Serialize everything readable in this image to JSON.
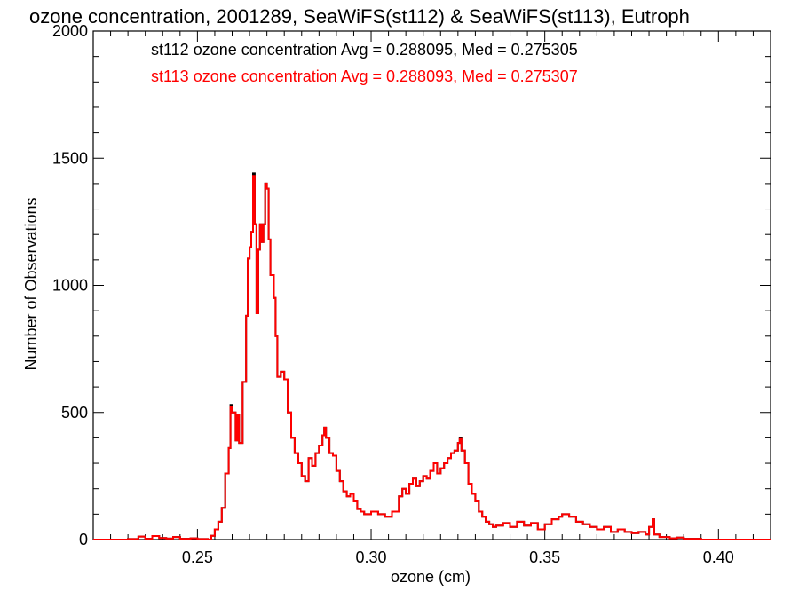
{
  "chart_data": {
    "type": "line",
    "title": "ozone concentration, 2001289, SeaWiFS(st112) & SeaWiFS(st113), Eutroph",
    "xlabel": "ozone (cm)",
    "ylabel": "Number of Observations",
    "xlim": [
      0.22,
      0.415
    ],
    "ylim": [
      0,
      2000
    ],
    "grid": false,
    "legend_position": "top-left",
    "x_ticks": [
      "0.25",
      "0.30",
      "0.35",
      "0.40"
    ],
    "y_ticks": [
      "0",
      "500",
      "1000",
      "1500",
      "2000"
    ],
    "annotations": [
      {
        "text": "st112 ozone concentration Avg = 0.288095, Med = 0.275305",
        "color": "#000000"
      },
      {
        "text": "st113 ozone concentration Avg = 0.288093, Med = 0.275307",
        "color": "#ff0000"
      }
    ],
    "series": [
      {
        "color": "#000000",
        "points": [
          [
            0.22,
            0
          ],
          [
            0.23,
            2
          ],
          [
            0.233,
            12
          ],
          [
            0.235,
            3
          ],
          [
            0.237,
            14
          ],
          [
            0.239,
            6
          ],
          [
            0.241,
            4
          ],
          [
            0.243,
            10
          ],
          [
            0.245,
            3
          ],
          [
            0.248,
            5
          ],
          [
            0.25,
            2
          ],
          [
            0.253,
            0
          ],
          [
            0.254,
            15
          ],
          [
            0.255,
            40
          ],
          [
            0.256,
            70
          ],
          [
            0.257,
            125
          ],
          [
            0.258,
            260
          ],
          [
            0.259,
            360
          ],
          [
            0.2595,
            530
          ],
          [
            0.26,
            500
          ],
          [
            0.261,
            390
          ],
          [
            0.2615,
            490
          ],
          [
            0.262,
            380
          ],
          [
            0.263,
            620
          ],
          [
            0.264,
            880
          ],
          [
            0.2645,
            1105
          ],
          [
            0.265,
            1150
          ],
          [
            0.2655,
            1210
          ],
          [
            0.266,
            1440
          ],
          [
            0.2665,
            1240
          ],
          [
            0.267,
            890
          ],
          [
            0.2675,
            1140
          ],
          [
            0.268,
            1240
          ],
          [
            0.2685,
            1170
          ],
          [
            0.269,
            1240
          ],
          [
            0.2695,
            1400
          ],
          [
            0.27,
            1380
          ],
          [
            0.2705,
            1180
          ],
          [
            0.271,
            1040
          ],
          [
            0.272,
            950
          ],
          [
            0.2725,
            800
          ],
          [
            0.273,
            640
          ],
          [
            0.274,
            660
          ],
          [
            0.275,
            630
          ],
          [
            0.276,
            500
          ],
          [
            0.277,
            400
          ],
          [
            0.278,
            340
          ],
          [
            0.279,
            300
          ],
          [
            0.28,
            250
          ],
          [
            0.281,
            230
          ],
          [
            0.282,
            320
          ],
          [
            0.283,
            290
          ],
          [
            0.284,
            340
          ],
          [
            0.285,
            370
          ],
          [
            0.286,
            410
          ],
          [
            0.2865,
            440
          ],
          [
            0.287,
            400
          ],
          [
            0.288,
            340
          ],
          [
            0.289,
            330
          ],
          [
            0.29,
            270
          ],
          [
            0.291,
            230
          ],
          [
            0.292,
            190
          ],
          [
            0.293,
            170
          ],
          [
            0.294,
            180
          ],
          [
            0.295,
            150
          ],
          [
            0.296,
            120
          ],
          [
            0.297,
            110
          ],
          [
            0.298,
            100
          ],
          [
            0.3,
            110
          ],
          [
            0.302,
            100
          ],
          [
            0.304,
            90
          ],
          [
            0.306,
            110
          ],
          [
            0.308,
            170
          ],
          [
            0.309,
            200
          ],
          [
            0.31,
            180
          ],
          [
            0.311,
            220
          ],
          [
            0.312,
            240
          ],
          [
            0.313,
            210
          ],
          [
            0.314,
            230
          ],
          [
            0.315,
            250
          ],
          [
            0.316,
            240
          ],
          [
            0.317,
            270
          ],
          [
            0.318,
            300
          ],
          [
            0.319,
            260
          ],
          [
            0.32,
            280
          ],
          [
            0.321,
            300
          ],
          [
            0.322,
            320
          ],
          [
            0.323,
            340
          ],
          [
            0.324,
            350
          ],
          [
            0.325,
            380
          ],
          [
            0.3255,
            400
          ],
          [
            0.326,
            350
          ],
          [
            0.327,
            300
          ],
          [
            0.328,
            220
          ],
          [
            0.329,
            180
          ],
          [
            0.33,
            150
          ],
          [
            0.331,
            110
          ],
          [
            0.332,
            90
          ],
          [
            0.333,
            70
          ],
          [
            0.334,
            60
          ],
          [
            0.335,
            50
          ],
          [
            0.336,
            55
          ],
          [
            0.338,
            65
          ],
          [
            0.34,
            50
          ],
          [
            0.342,
            70
          ],
          [
            0.344,
            55
          ],
          [
            0.346,
            65
          ],
          [
            0.348,
            40
          ],
          [
            0.35,
            60
          ],
          [
            0.352,
            80
          ],
          [
            0.354,
            90
          ],
          [
            0.355,
            100
          ],
          [
            0.357,
            90
          ],
          [
            0.359,
            70
          ],
          [
            0.361,
            60
          ],
          [
            0.363,
            50
          ],
          [
            0.365,
            40
          ],
          [
            0.367,
            50
          ],
          [
            0.369,
            30
          ],
          [
            0.371,
            40
          ],
          [
            0.373,
            30
          ],
          [
            0.375,
            25
          ],
          [
            0.377,
            30
          ],
          [
            0.379,
            20
          ],
          [
            0.38,
            50
          ],
          [
            0.381,
            80
          ],
          [
            0.3815,
            20
          ],
          [
            0.383,
            10
          ],
          [
            0.386,
            5
          ],
          [
            0.388,
            8
          ],
          [
            0.39,
            3
          ],
          [
            0.395,
            0
          ],
          [
            0.415,
            0
          ]
        ]
      },
      {
        "color": "#ff0000",
        "points": [
          [
            0.22,
            0
          ],
          [
            0.23,
            2
          ],
          [
            0.233,
            12
          ],
          [
            0.235,
            3
          ],
          [
            0.237,
            14
          ],
          [
            0.239,
            6
          ],
          [
            0.241,
            4
          ],
          [
            0.243,
            10
          ],
          [
            0.245,
            3
          ],
          [
            0.248,
            5
          ],
          [
            0.25,
            2
          ],
          [
            0.253,
            0
          ],
          [
            0.254,
            15
          ],
          [
            0.255,
            40
          ],
          [
            0.256,
            70
          ],
          [
            0.257,
            125
          ],
          [
            0.258,
            260
          ],
          [
            0.259,
            360
          ],
          [
            0.2595,
            520
          ],
          [
            0.26,
            500
          ],
          [
            0.261,
            390
          ],
          [
            0.2615,
            490
          ],
          [
            0.262,
            380
          ],
          [
            0.263,
            620
          ],
          [
            0.264,
            880
          ],
          [
            0.2645,
            1105
          ],
          [
            0.265,
            1150
          ],
          [
            0.2655,
            1210
          ],
          [
            0.266,
            1430
          ],
          [
            0.2665,
            1240
          ],
          [
            0.267,
            890
          ],
          [
            0.2675,
            1140
          ],
          [
            0.268,
            1240
          ],
          [
            0.2685,
            1170
          ],
          [
            0.269,
            1240
          ],
          [
            0.2695,
            1400
          ],
          [
            0.27,
            1380
          ],
          [
            0.2705,
            1180
          ],
          [
            0.271,
            1040
          ],
          [
            0.272,
            950
          ],
          [
            0.2725,
            800
          ],
          [
            0.273,
            640
          ],
          [
            0.274,
            660
          ],
          [
            0.275,
            630
          ],
          [
            0.276,
            500
          ],
          [
            0.277,
            400
          ],
          [
            0.278,
            340
          ],
          [
            0.279,
            300
          ],
          [
            0.28,
            250
          ],
          [
            0.281,
            230
          ],
          [
            0.282,
            320
          ],
          [
            0.283,
            290
          ],
          [
            0.284,
            340
          ],
          [
            0.285,
            370
          ],
          [
            0.286,
            410
          ],
          [
            0.2865,
            440
          ],
          [
            0.287,
            400
          ],
          [
            0.288,
            340
          ],
          [
            0.289,
            330
          ],
          [
            0.29,
            270
          ],
          [
            0.291,
            230
          ],
          [
            0.292,
            190
          ],
          [
            0.293,
            170
          ],
          [
            0.294,
            180
          ],
          [
            0.295,
            150
          ],
          [
            0.296,
            120
          ],
          [
            0.297,
            110
          ],
          [
            0.298,
            100
          ],
          [
            0.3,
            110
          ],
          [
            0.302,
            100
          ],
          [
            0.304,
            90
          ],
          [
            0.306,
            110
          ],
          [
            0.308,
            170
          ],
          [
            0.309,
            200
          ],
          [
            0.31,
            180
          ],
          [
            0.311,
            220
          ],
          [
            0.312,
            240
          ],
          [
            0.313,
            210
          ],
          [
            0.314,
            230
          ],
          [
            0.315,
            250
          ],
          [
            0.316,
            240
          ],
          [
            0.317,
            270
          ],
          [
            0.318,
            300
          ],
          [
            0.319,
            260
          ],
          [
            0.32,
            280
          ],
          [
            0.321,
            300
          ],
          [
            0.322,
            320
          ],
          [
            0.323,
            340
          ],
          [
            0.324,
            350
          ],
          [
            0.325,
            380
          ],
          [
            0.3255,
            395
          ],
          [
            0.326,
            350
          ],
          [
            0.327,
            300
          ],
          [
            0.328,
            220
          ],
          [
            0.329,
            180
          ],
          [
            0.33,
            150
          ],
          [
            0.331,
            110
          ],
          [
            0.332,
            90
          ],
          [
            0.333,
            70
          ],
          [
            0.334,
            60
          ],
          [
            0.335,
            50
          ],
          [
            0.336,
            55
          ],
          [
            0.338,
            65
          ],
          [
            0.34,
            50
          ],
          [
            0.342,
            70
          ],
          [
            0.344,
            55
          ],
          [
            0.346,
            65
          ],
          [
            0.348,
            40
          ],
          [
            0.35,
            60
          ],
          [
            0.352,
            80
          ],
          [
            0.354,
            90
          ],
          [
            0.355,
            100
          ],
          [
            0.357,
            90
          ],
          [
            0.359,
            70
          ],
          [
            0.361,
            60
          ],
          [
            0.363,
            50
          ],
          [
            0.365,
            40
          ],
          [
            0.367,
            50
          ],
          [
            0.369,
            30
          ],
          [
            0.371,
            40
          ],
          [
            0.373,
            30
          ],
          [
            0.375,
            25
          ],
          [
            0.377,
            30
          ],
          [
            0.379,
            20
          ],
          [
            0.38,
            50
          ],
          [
            0.381,
            80
          ],
          [
            0.3815,
            20
          ],
          [
            0.383,
            10
          ],
          [
            0.386,
            5
          ],
          [
            0.388,
            8
          ],
          [
            0.39,
            3
          ],
          [
            0.395,
            0
          ],
          [
            0.415,
            0
          ]
        ]
      }
    ]
  }
}
